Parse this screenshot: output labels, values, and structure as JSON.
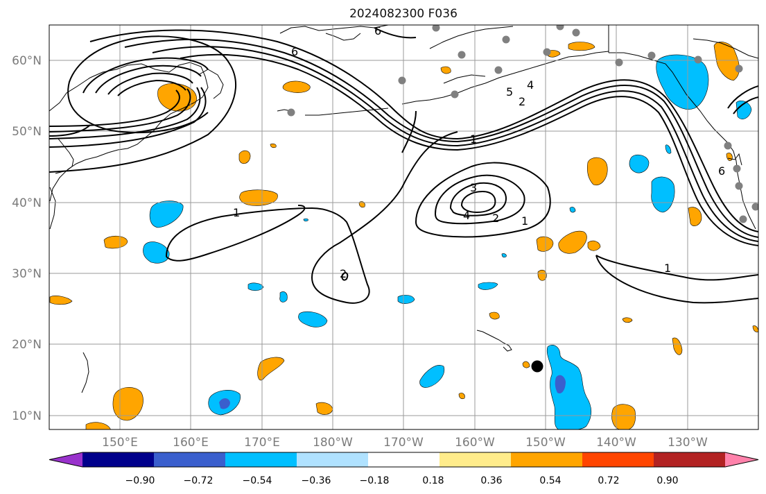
{
  "title": "2024082300 F036",
  "lat_labels": [
    "60°N",
    "50°N",
    "40°N",
    "30°N",
    "20°N",
    "10°N"
  ],
  "lon_labels": [
    "150°E",
    "160°E",
    "170°E",
    "180°W",
    "170°W",
    "160°W",
    "150°W",
    "140°W",
    "130°W"
  ],
  "colorbar": {
    "tick_labels": [
      "−0.90",
      "−0.72",
      "−0.54",
      "−0.36",
      "−0.18",
      "0.18",
      "0.36",
      "0.54",
      "0.72",
      "0.90"
    ],
    "colors": [
      "#9932cc",
      "#00008b",
      "#3a5fcd",
      "#00bfff",
      "#b0e2ff",
      "#ffffff",
      "#ffec8b",
      "#ffa500",
      "#ff4500",
      "#b22222",
      "#ff82ab"
    ]
  },
  "contour_labels": [
    "6",
    "4",
    "5",
    "2",
    "1",
    "3",
    "4",
    "2",
    "1",
    "1",
    "2",
    "1",
    "6",
    "6"
  ],
  "map_extent": {
    "lon_min": 140,
    "lon_max": 240,
    "lat_min": 8,
    "lat_max": 65
  }
}
